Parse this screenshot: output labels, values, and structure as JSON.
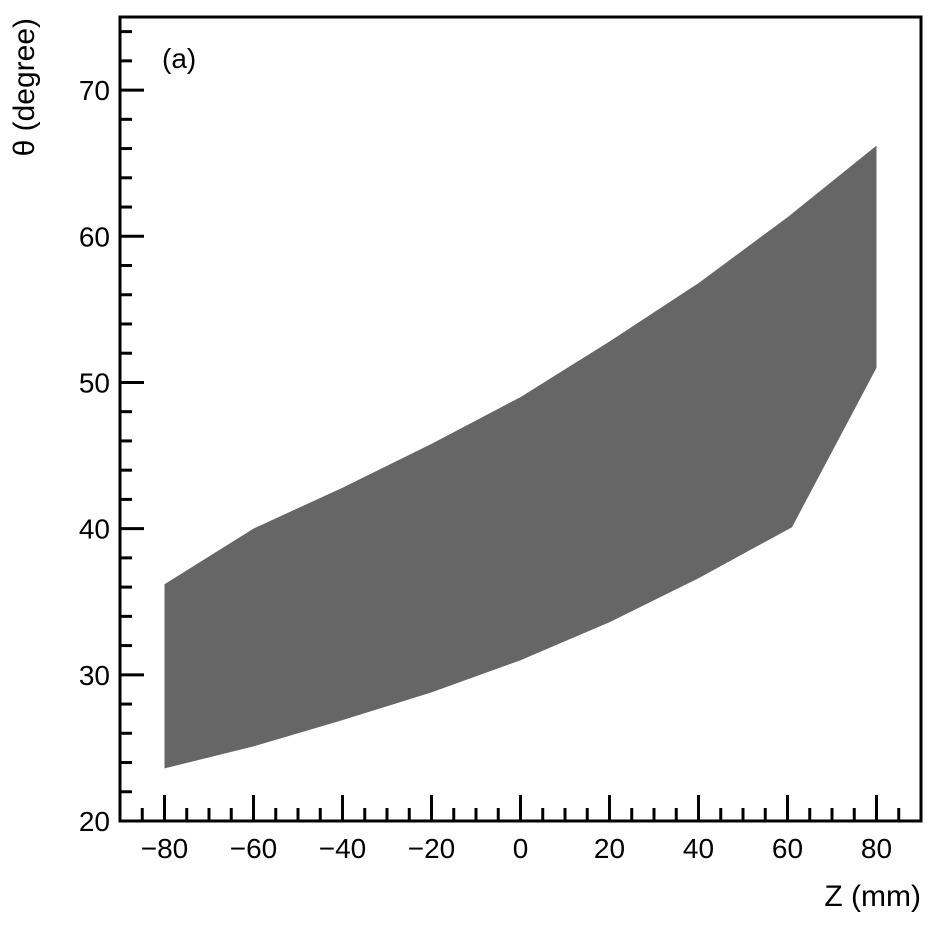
{
  "chart_data": {
    "type": "area",
    "panel_label": "(a)",
    "xlabel": "Z (mm)",
    "ylabel": "θ (degree)",
    "xlim": [
      -90,
      90
    ],
    "ylim": [
      20,
      75
    ],
    "x_ticks": [
      -80,
      -60,
      -40,
      -20,
      0,
      20,
      40,
      60,
      80
    ],
    "x_tick_labels": [
      "−80",
      "−60",
      "−40",
      "−20",
      "0",
      "20",
      "40",
      "60",
      "80"
    ],
    "y_ticks": [
      20,
      30,
      40,
      50,
      60,
      70
    ],
    "y_tick_labels": [
      "20",
      "30",
      "40",
      "50",
      "60",
      "70"
    ],
    "fill_color": "#666666",
    "grid": false,
    "region": {
      "upper": {
        "x": [
          -80,
          -60,
          -40,
          -20,
          0,
          20,
          40,
          60,
          80
        ],
        "y": [
          36.2,
          40.0,
          42.8,
          45.8,
          49.0,
          52.8,
          56.8,
          61.3,
          66.2
        ]
      },
      "lower": {
        "x": [
          -80,
          -60,
          -40,
          -20,
          0,
          20,
          40,
          61,
          80
        ],
        "y": [
          23.6,
          25.1,
          26.9,
          28.8,
          31.0,
          33.6,
          36.6,
          40.1,
          51.0
        ]
      }
    }
  }
}
